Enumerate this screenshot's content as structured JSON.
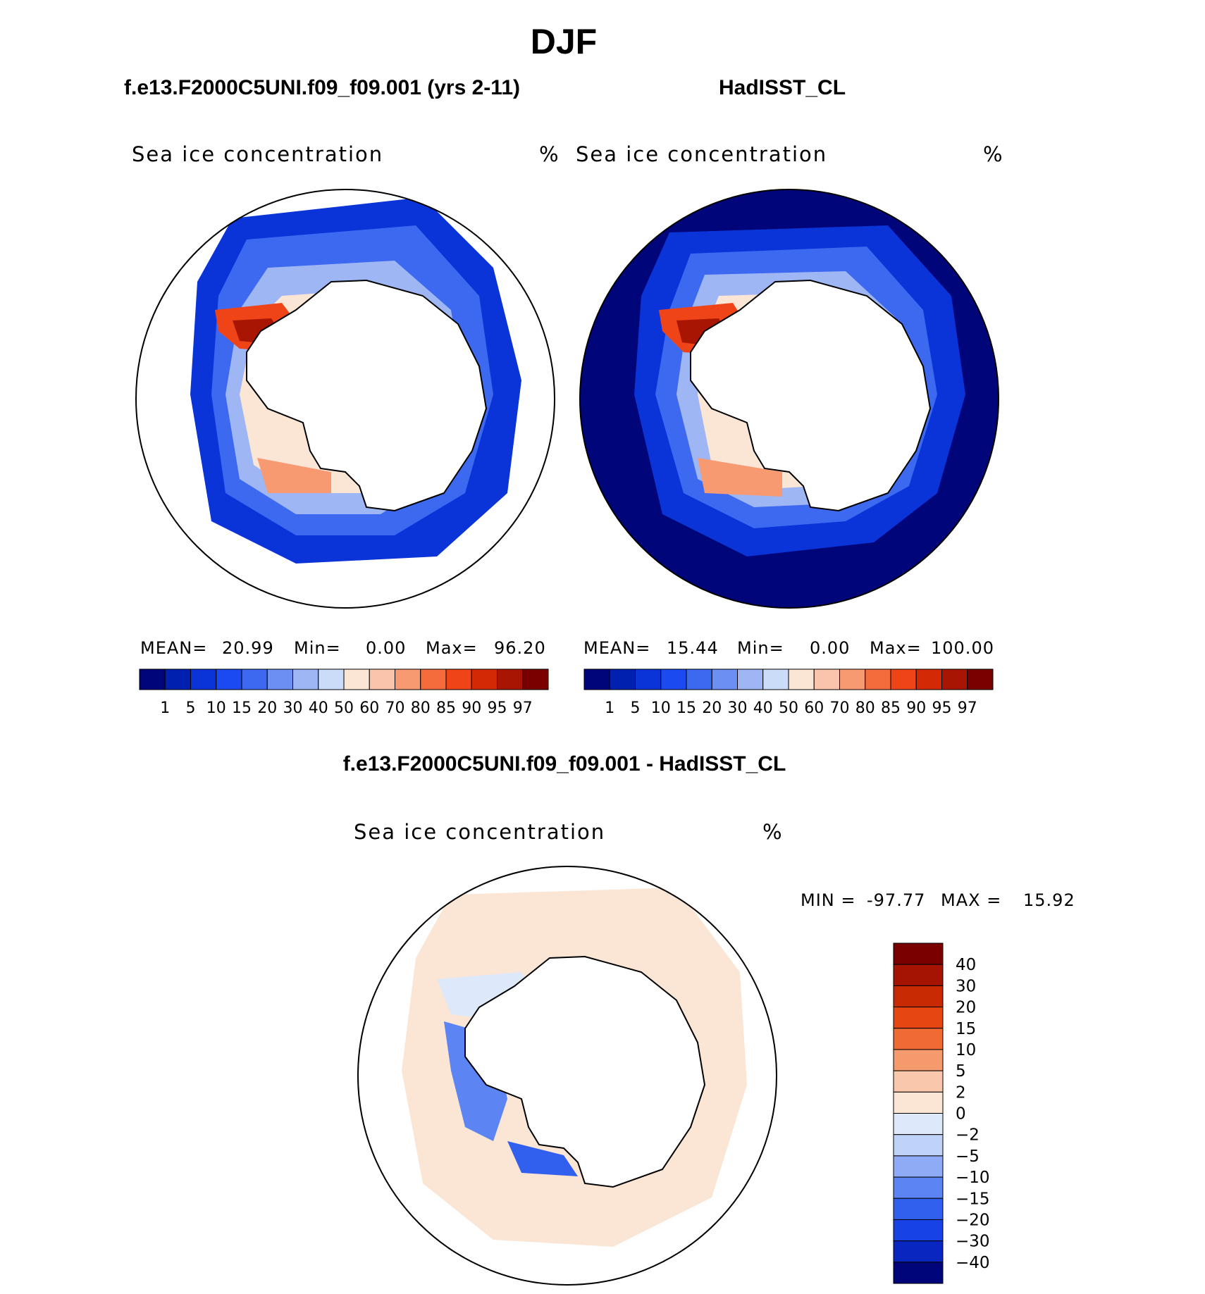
{
  "figure": {
    "main_title": "DJF",
    "left_title": "f.e13.F2000C5UNI.f09_f09.001 (yrs 2-11)",
    "right_title": "HadISST_CL",
    "diff_title": "f.e13.F2000C5UNI.f09_f09.001 - HadISST_CL"
  },
  "colors": {
    "abs_scale": [
      "#00057a",
      "#0020b0",
      "#0a34d8",
      "#1a4af0",
      "#3d68f0",
      "#6b8ff2",
      "#9fb6f5",
      "#cbdcf8",
      "#fbe6d6",
      "#f9c4ab",
      "#f79a72",
      "#f46b3c",
      "#ee4417",
      "#d42905",
      "#a81603",
      "#7a0000"
    ],
    "diff_scale": [
      "#00057a",
      "#0a26c0",
      "#1642e6",
      "#3260ee",
      "#5c84f2",
      "#8fabf5",
      "#bfd2f8",
      "#dde8fb",
      "#fbe6d6",
      "#f8c7ac",
      "#f59a6c",
      "#f06a33",
      "#e64612",
      "#c82a04",
      "#a51402",
      "#7a0000"
    ],
    "land": "#ffffff",
    "coast": "#000000"
  },
  "chart_data": [
    {
      "type": "heatmap",
      "panel": "model",
      "title": "f.e13.F2000C5UNI.f09_f09.001 (yrs 2-11)",
      "variable": "Sea ice concentration",
      "units": "%",
      "projection": "south polar stereographic",
      "stats": {
        "mean_label": "MEAN=",
        "mean": "20.99",
        "min_label": "Min=",
        "min": "0.00",
        "max_label": "Max=",
        "max": "96.20"
      },
      "colorbar": {
        "orientation": "horizontal",
        "levels": [
          "1",
          "5",
          "10",
          "15",
          "20",
          "30",
          "40",
          "50",
          "60",
          "70",
          "80",
          "85",
          "90",
          "95",
          "97"
        ]
      }
    },
    {
      "type": "heatmap",
      "panel": "observations",
      "title": "HadISST_CL",
      "variable": "Sea ice concentration",
      "units": "%",
      "projection": "south polar stereographic",
      "stats": {
        "mean_label": "MEAN=",
        "mean": "15.44",
        "min_label": "Min=",
        "min": "0.00",
        "max_label": "Max=",
        "max": "100.00"
      },
      "colorbar": {
        "orientation": "horizontal",
        "levels": [
          "1",
          "5",
          "10",
          "15",
          "20",
          "30",
          "40",
          "50",
          "60",
          "70",
          "80",
          "85",
          "90",
          "95",
          "97"
        ]
      }
    },
    {
      "type": "heatmap",
      "panel": "difference",
      "title": "f.e13.F2000C5UNI.f09_f09.001 - HadISST_CL",
      "variable": "Sea ice concentration",
      "units": "%",
      "projection": "south polar stereographic",
      "stats": {
        "min_label": "MIN =",
        "min": "-97.77",
        "max_label": "MAX =",
        "max": "15.92"
      },
      "colorbar": {
        "orientation": "vertical",
        "levels": [
          "40",
          "30",
          "20",
          "15",
          "10",
          "5",
          "2",
          "0",
          "-2",
          "-5",
          "-10",
          "-15",
          "-20",
          "-30",
          "-40"
        ]
      }
    }
  ]
}
